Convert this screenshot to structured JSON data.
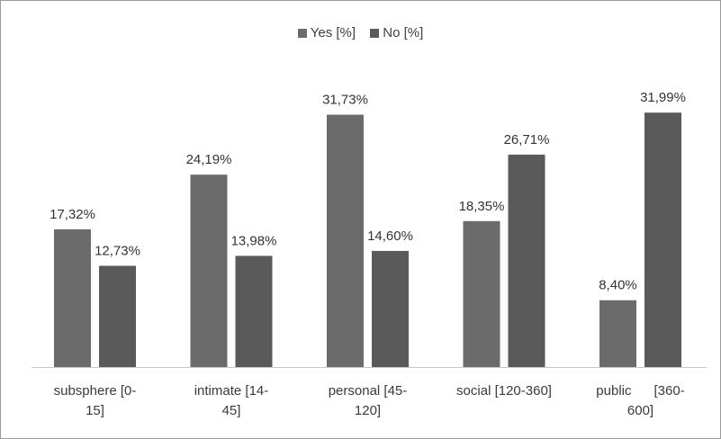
{
  "chart_data": {
    "type": "bar",
    "categories": [
      "subsphere [0-\n15]",
      "intimate [14-\n45]",
      "personal [45-\n120]",
      "social [120-360]",
      "public      [360-\n600]"
    ],
    "series": [
      {
        "name": "Yes [%]",
        "color": "#6b6b6b",
        "values": [
          17.32,
          24.19,
          31.73,
          18.35,
          8.4
        ],
        "labels": [
          "17,32%",
          "24,19%",
          "31,73%",
          "18,35%",
          "8,40%"
        ]
      },
      {
        "name": "No [%]",
        "color": "#5a5a5a",
        "values": [
          12.73,
          13.98,
          14.6,
          26.71,
          31.99
        ],
        "labels": [
          "12,73%",
          "13,98%",
          "14,60%",
          "26,71%",
          "31,99%"
        ]
      }
    ],
    "ylim": [
      0,
      36
    ],
    "legend_position": "top",
    "grid": false
  }
}
